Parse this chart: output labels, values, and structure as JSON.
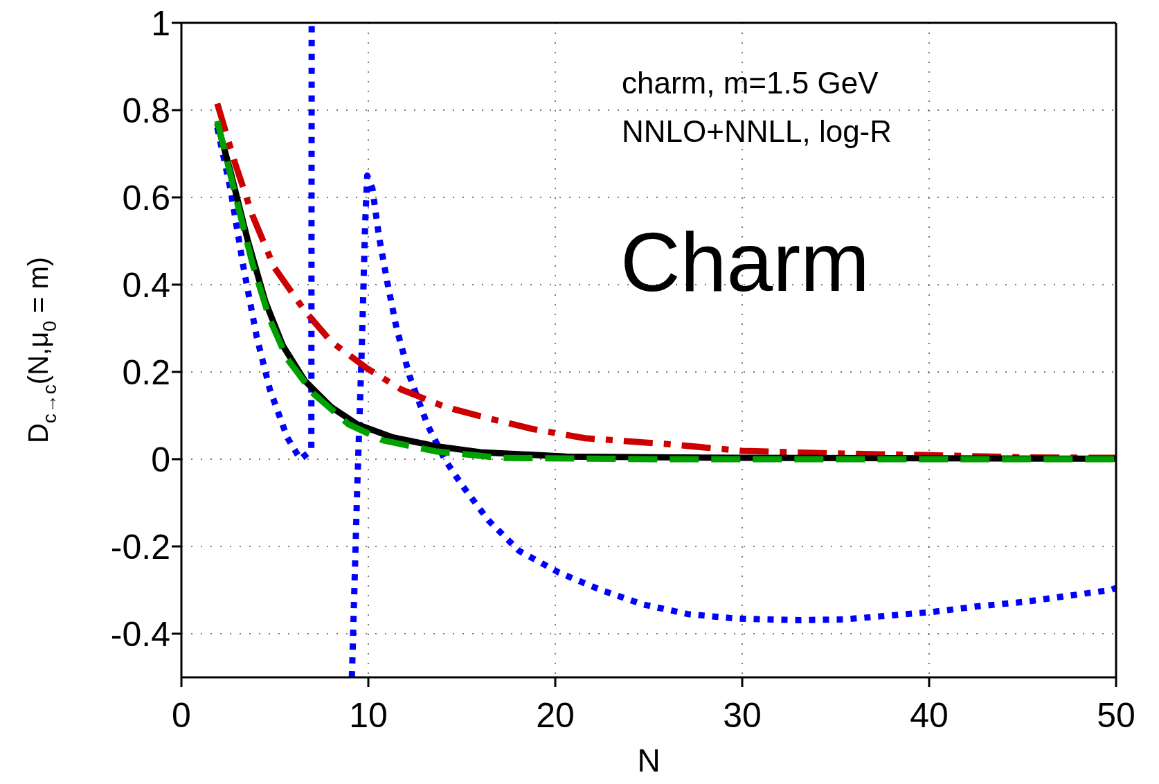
{
  "chart_data": {
    "type": "line",
    "xlabel": "N",
    "ylabel": "D$_{c→c}$(N,μ$_{0}$ = m)",
    "xlim": [
      0,
      50
    ],
    "xticks": [
      0,
      10,
      20,
      30,
      40,
      50
    ],
    "ylim": [
      -0.5,
      1
    ],
    "yticks": [
      -0.4,
      -0.2,
      0,
      0.2,
      0.4,
      0.6,
      0.8,
      1
    ],
    "grid": true,
    "annotations": [
      "charm, m=1.5 GeV",
      "NNLO+NNLL, log-R",
      "Charm"
    ],
    "series": [
      {
        "color": "#0000ff",
        "line_style": "dotted",
        "x": [
          1.92,
          2.62,
          3.32,
          4.03,
          4.73,
          5.66,
          6.36,
          6.95,
          6.97,
          7.5,
          9.12,
          9.41,
          9.64,
          9.83,
          9.94,
          10.22,
          10.57,
          11.04,
          11.51,
          12.21,
          13.15,
          14.08,
          15.02,
          16.42,
          18.06,
          20.2,
          22.45,
          24.7,
          27.1,
          29.6,
          33.1,
          35.5,
          38,
          40.2,
          42.65,
          45.1,
          47.3,
          49.7,
          50
        ],
        "values": [
          0.76,
          0.62,
          0.44,
          0.28,
          0.16,
          0.05,
          0,
          0.02,
          1,
          null,
          -0.5,
          -0.06,
          0.24,
          0.54,
          0.65,
          0.62,
          0.51,
          0.4,
          0.3,
          0.19,
          0.08,
          0,
          -0.06,
          -0.14,
          -0.21,
          -0.26,
          -0.3,
          -0.333,
          -0.355,
          -0.365,
          -0.369,
          -0.367,
          -0.358,
          -0.35,
          -0.337,
          -0.327,
          -0.314,
          -0.3,
          -0.295
        ]
      },
      {
        "color": "#cc0000",
        "line_style": "dashdot",
        "x": [
          1.92,
          2.86,
          3.79,
          4.96,
          6.6,
          8,
          9.87,
          11.75,
          14.1,
          16.4,
          18.8,
          21.6,
          25.9,
          30,
          35.1,
          40.2,
          45.3,
          50
        ],
        "values": [
          0.815,
          0.68,
          0.56,
          0.44,
          0.34,
          0.27,
          0.21,
          0.16,
          0.12,
          0.094,
          0.069,
          0.048,
          0.035,
          0.019,
          0.013,
          0.009,
          0.004,
          0.003
        ]
      },
      {
        "color": "#000000",
        "line_style": "solid",
        "x": [
          1.92,
          2.62,
          3.56,
          4.5,
          5.43,
          6.6,
          8,
          9.4,
          11.3,
          13.6,
          16,
          20.6,
          30,
          50
        ],
        "values": [
          0.77,
          0.66,
          0.5,
          0.36,
          0.26,
          0.18,
          0.12,
          0.08,
          0.05,
          0.03,
          0.016,
          0.006,
          0.003,
          0.001
        ]
      },
      {
        "color": "#00a000",
        "line_style": "dashed",
        "x": [
          1.92,
          2.86,
          3.79,
          4.73,
          5.66,
          7.07,
          8.94,
          10.8,
          13.6,
          17.1,
          25,
          50
        ],
        "values": [
          0.775,
          0.61,
          0.45,
          0.32,
          0.23,
          0.15,
          0.08,
          0.043,
          0.018,
          0.003,
          0,
          0
        ]
      }
    ]
  }
}
